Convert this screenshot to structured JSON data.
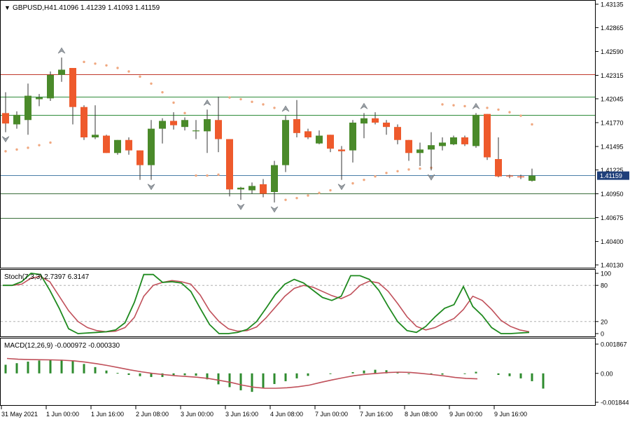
{
  "header": {
    "menu_glyph": "▼",
    "symbol_tf": "GBPUSD,H4",
    "ohlc": "1.41096 1.41239 1.41093 1.41159"
  },
  "colors": {
    "bull": "#4a8a2a",
    "bear": "#ee5a2c",
    "wick": "#333333",
    "sar": "#f0a880",
    "fractal": "#9aa0a6",
    "level_red": "#c0392b",
    "level_green": "#2e8b3a",
    "level_blue": "#4a7fa8",
    "level_dark": "#3a6e3a",
    "stoch_main": "#1f8a1f",
    "stoch_signal": "#c0505a",
    "macd_hist": "#2e8b2e",
    "macd_signal": "#c0505a",
    "price_badge": "#1f3f7a"
  },
  "chart_data": [
    {
      "type": "candlestick",
      "title": "GBPUSD,H4",
      "ylim": [
        1.4013,
        1.43135
      ],
      "y_ticks": [
        "1.43135",
        "1.42865",
        "1.42590",
        "1.42315",
        "1.42045",
        "1.41770",
        "1.41495",
        "1.41225",
        "1.40950",
        "1.40675",
        "1.40400",
        "1.40130"
      ],
      "current_price": "1.41159",
      "candles": [
        {
          "o": 1.4188,
          "h": 1.4212,
          "l": 1.4166,
          "c": 1.4176
        },
        {
          "o": 1.4175,
          "h": 1.419,
          "l": 1.417,
          "c": 1.4186
        },
        {
          "o": 1.418,
          "h": 1.4222,
          "l": 1.4163,
          "c": 1.4208
        },
        {
          "o": 1.4204,
          "h": 1.421,
          "l": 1.4196,
          "c": 1.4206
        },
        {
          "o": 1.4205,
          "h": 1.4236,
          "l": 1.4202,
          "c": 1.4232
        },
        {
          "o": 1.4232,
          "h": 1.4252,
          "l": 1.4224,
          "c": 1.4238
        },
        {
          "o": 1.424,
          "h": 1.424,
          "l": 1.4175,
          "c": 1.4195
        },
        {
          "o": 1.4195,
          "h": 1.4197,
          "l": 1.4157,
          "c": 1.416
        },
        {
          "o": 1.416,
          "h": 1.4197,
          "l": 1.4158,
          "c": 1.4163
        },
        {
          "o": 1.4162,
          "h": 1.4163,
          "l": 1.4142,
          "c": 1.4142
        },
        {
          "o": 1.4142,
          "h": 1.4157,
          "l": 1.414,
          "c": 1.4157
        },
        {
          "o": 1.4157,
          "h": 1.416,
          "l": 1.414,
          "c": 1.4145
        },
        {
          "o": 1.4145,
          "h": 1.4145,
          "l": 1.4111,
          "c": 1.4128
        },
        {
          "o": 1.4128,
          "h": 1.418,
          "l": 1.4111,
          "c": 1.417
        },
        {
          "o": 1.417,
          "h": 1.4182,
          "l": 1.4153,
          "c": 1.4179
        },
        {
          "o": 1.4179,
          "h": 1.4189,
          "l": 1.4169,
          "c": 1.4174
        },
        {
          "o": 1.4172,
          "h": 1.4183,
          "l": 1.4168,
          "c": 1.418
        },
        {
          "o": 1.4168,
          "h": 1.418,
          "l": 1.4158,
          "c": 1.4168
        },
        {
          "o": 1.4167,
          "h": 1.4192,
          "l": 1.4142,
          "c": 1.4181
        },
        {
          "o": 1.418,
          "h": 1.4207,
          "l": 1.4143,
          "c": 1.4158
        },
        {
          "o": 1.4158,
          "h": 1.4158,
          "l": 1.4092,
          "c": 1.41
        },
        {
          "o": 1.41,
          "h": 1.4103,
          "l": 1.4088,
          "c": 1.4102
        },
        {
          "o": 1.4099,
          "h": 1.4108,
          "l": 1.4095,
          "c": 1.4104
        },
        {
          "o": 1.4106,
          "h": 1.4112,
          "l": 1.4091,
          "c": 1.4095
        },
        {
          "o": 1.4097,
          "h": 1.4133,
          "l": 1.4085,
          "c": 1.4128
        },
        {
          "o": 1.4128,
          "h": 1.4185,
          "l": 1.412,
          "c": 1.418
        },
        {
          "o": 1.4181,
          "h": 1.4203,
          "l": 1.416,
          "c": 1.4165
        },
        {
          "o": 1.4167,
          "h": 1.417,
          "l": 1.4158,
          "c": 1.416
        },
        {
          "o": 1.4153,
          "h": 1.4168,
          "l": 1.4152,
          "c": 1.4162
        },
        {
          "o": 1.4163,
          "h": 1.4163,
          "l": 1.4143,
          "c": 1.4147
        },
        {
          "o": 1.4146,
          "h": 1.415,
          "l": 1.4111,
          "c": 1.4144
        },
        {
          "o": 1.4145,
          "h": 1.418,
          "l": 1.4131,
          "c": 1.4177
        },
        {
          "o": 1.4176,
          "h": 1.4188,
          "l": 1.4159,
          "c": 1.4182
        },
        {
          "o": 1.4182,
          "h": 1.4189,
          "l": 1.4175,
          "c": 1.4177
        },
        {
          "o": 1.4177,
          "h": 1.418,
          "l": 1.4163,
          "c": 1.4172
        },
        {
          "o": 1.4172,
          "h": 1.4175,
          "l": 1.4152,
          "c": 1.4157
        },
        {
          "o": 1.4157,
          "h": 1.4157,
          "l": 1.4133,
          "c": 1.4142
        },
        {
          "o": 1.4142,
          "h": 1.4154,
          "l": 1.4127,
          "c": 1.4146
        },
        {
          "o": 1.4146,
          "h": 1.4166,
          "l": 1.4122,
          "c": 1.4151
        },
        {
          "o": 1.415,
          "h": 1.416,
          "l": 1.4145,
          "c": 1.4154
        },
        {
          "o": 1.4152,
          "h": 1.4162,
          "l": 1.4151,
          "c": 1.416
        },
        {
          "o": 1.416,
          "h": 1.4162,
          "l": 1.415,
          "c": 1.4152
        },
        {
          "o": 1.415,
          "h": 1.4188,
          "l": 1.4148,
          "c": 1.4186
        },
        {
          "o": 1.4187,
          "h": 1.4187,
          "l": 1.4134,
          "c": 1.4137
        },
        {
          "o": 1.4135,
          "h": 1.416,
          "l": 1.4114,
          "c": 1.4115
        },
        {
          "o": 1.4116,
          "h": 1.4117,
          "l": 1.4113,
          "c": 1.4115
        },
        {
          "o": 1.4115,
          "h": 1.4117,
          "l": 1.4112,
          "c": 1.4114
        },
        {
          "o": 1.411,
          "h": 1.4124,
          "l": 1.4109,
          "c": 1.4116
        }
      ],
      "parabolic_sar": [
        {
          "i": 0,
          "v": 1.4144
        },
        {
          "i": 1,
          "v": 1.4146
        },
        {
          "i": 2,
          "v": 1.4148
        },
        {
          "i": 3,
          "v": 1.4151
        },
        {
          "i": 4,
          "v": 1.4154
        },
        {
          "i": 7,
          "v": 1.4247
        },
        {
          "i": 8,
          "v": 1.4245
        },
        {
          "i": 9,
          "v": 1.4243
        },
        {
          "i": 10,
          "v": 1.424
        },
        {
          "i": 11,
          "v": 1.4236
        },
        {
          "i": 12,
          "v": 1.423
        },
        {
          "i": 13,
          "v": 1.4222
        },
        {
          "i": 14,
          "v": 1.4212
        },
        {
          "i": 15,
          "v": 1.42
        },
        {
          "i": 16,
          "v": 1.4188
        },
        {
          "i": 17,
          "v": 1.4116
        },
        {
          "i": 18,
          "v": 1.4116
        },
        {
          "i": 19,
          "v": 1.4117
        },
        {
          "i": 20,
          "v": 1.4206
        },
        {
          "i": 21,
          "v": 1.4204
        },
        {
          "i": 22,
          "v": 1.4201
        },
        {
          "i": 23,
          "v": 1.4198
        },
        {
          "i": 24,
          "v": 1.4194
        },
        {
          "i": 25,
          "v": 1.4088
        },
        {
          "i": 26,
          "v": 1.409
        },
        {
          "i": 27,
          "v": 1.4093
        },
        {
          "i": 28,
          "v": 1.4096
        },
        {
          "i": 29,
          "v": 1.4099
        },
        {
          "i": 30,
          "v": 1.4103
        },
        {
          "i": 31,
          "v": 1.4107
        },
        {
          "i": 32,
          "v": 1.4111
        },
        {
          "i": 33,
          "v": 1.4115
        },
        {
          "i": 34,
          "v": 1.4119
        },
        {
          "i": 35,
          "v": 1.4121
        },
        {
          "i": 36,
          "v": 1.4123
        },
        {
          "i": 37,
          "v": 1.4124
        },
        {
          "i": 38,
          "v": 1.4125
        },
        {
          "i": 39,
          "v": 1.4198
        },
        {
          "i": 40,
          "v": 1.4197
        },
        {
          "i": 41,
          "v": 1.4196
        },
        {
          "i": 42,
          "v": 1.4196
        },
        {
          "i": 43,
          "v": 1.4194
        },
        {
          "i": 44,
          "v": 1.4192
        },
        {
          "i": 45,
          "v": 1.4189
        },
        {
          "i": 46,
          "v": 1.4185
        },
        {
          "i": 47,
          "v": 1.4175
        }
      ],
      "fractals_up": [
        5,
        18,
        25,
        32,
        42
      ],
      "fractals_down": [
        0,
        13,
        21,
        24,
        30,
        38
      ],
      "levels": [
        {
          "price": 1.4233,
          "color": "level_red"
        },
        {
          "price": 1.4207,
          "color": "level_green"
        },
        {
          "price": 1.4186,
          "color": "level_green"
        },
        {
          "price": 1.4116,
          "color": "level_blue"
        },
        {
          "price": 1.4095,
          "color": "level_dark"
        },
        {
          "price": 1.4067,
          "color": "level_dark"
        }
      ]
    },
    {
      "type": "line",
      "title": "Stoch(7,3,3) 2.7397 6.3147",
      "ylim": [
        0,
        100
      ],
      "y_ticks": [
        "100",
        "80",
        "20",
        "0"
      ],
      "levels": [
        80,
        20
      ],
      "series": [
        {
          "name": "main",
          "values": [
            80,
            80,
            86,
            100,
            98,
            72,
            42,
            8,
            0,
            1,
            2,
            3,
            6,
            18,
            52,
            98,
            98,
            85,
            86,
            84,
            70,
            42,
            15,
            0,
            0,
            2,
            7,
            20,
            42,
            65,
            82,
            90,
            84,
            72,
            60,
            55,
            62,
            96,
            96,
            90,
            72,
            45,
            20,
            5,
            2,
            12,
            28,
            42,
            48,
            78,
            45,
            30,
            10,
            0,
            0,
            1,
            2
          ]
        },
        {
          "name": "signal",
          "values": [
            80,
            80,
            82,
            92,
            95,
            86,
            62,
            38,
            20,
            10,
            5,
            3,
            4,
            10,
            27,
            62,
            80,
            85,
            88,
            86,
            82,
            64,
            38,
            20,
            8,
            4,
            5,
            11,
            26,
            44,
            62,
            75,
            80,
            77,
            70,
            63,
            58,
            65,
            80,
            87,
            84,
            70,
            50,
            28,
            12,
            6,
            10,
            18,
            25,
            40,
            62,
            55,
            40,
            22,
            12,
            6,
            3
          ]
        }
      ]
    },
    {
      "type": "bar",
      "title": "MACD(12,26,9) -0.000972 -0.000330",
      "ylim": [
        -0.001844,
        0.001867
      ],
      "y_ticks": [
        "0.001867",
        "0.00",
        "-0.001844"
      ],
      "histogram": [
        0.00055,
        0.00065,
        0.00075,
        0.00082,
        0.00085,
        0.00087,
        0.00078,
        0.0006,
        0.0004,
        0.00018,
        3e-05,
        -0.0001,
        -0.00018,
        -0.00023,
        -0.00023,
        -0.00015,
        -0.00012,
        -0.00015,
        -0.00038,
        -0.0007,
        -0.00088,
        -0.00108,
        -0.00118,
        -0.00095,
        -0.00068,
        -0.0005,
        -0.00032,
        -0.00016,
        -3e-05,
        8e-05,
        0.00018,
        0.00023,
        0.0002,
        8e-05,
        -3e-05,
        -8e-05,
        -8e-05,
        -3e-05,
        0.0001,
        -0.0001,
        -0.00018,
        -0.00032,
        -0.0005,
        -0.00097
      ],
      "histogram_x": [
        0,
        1,
        2,
        3,
        4,
        5,
        6,
        7,
        8,
        9,
        10,
        11,
        12,
        13,
        14,
        15,
        16,
        17,
        18,
        19,
        20,
        21,
        22,
        23,
        24,
        25,
        26,
        27,
        29,
        31,
        32,
        33,
        34,
        35,
        36,
        38,
        39,
        41,
        42,
        44,
        45,
        46,
        47,
        48
      ],
      "signal": [
        0.00095,
        0.0009,
        0.00088,
        0.00087,
        0.00086,
        0.00084,
        0.0008,
        0.00072,
        0.00062,
        0.0005,
        0.00036,
        0.00022,
        0.0001,
        0.0,
        -8e-05,
        -0.00015,
        -0.0002,
        -0.00025,
        -0.00033,
        -0.00045,
        -0.00058,
        -0.00075,
        -0.00088,
        -0.00095,
        -0.00095,
        -0.00092,
        -0.00085,
        -0.00075,
        -0.00058,
        -0.00042,
        -0.00028,
        -0.00015,
        -6e-05,
        0.0,
        5e-05,
        8e-05,
        6e-05,
        0.0,
        -8e-05,
        -0.00016,
        -0.00026,
        -0.00032,
        -0.00035
      ]
    }
  ],
  "x_axis": {
    "labels": [
      "31 May 2021",
      "1 Jun 00:00",
      "1 Jun 16:00",
      "2 Jun 08:00",
      "3 Jun 00:00",
      "3 Jun 16:00",
      "4 Jun 08:00",
      "7 Jun 00:00",
      "7 Jun 16:00",
      "8 Jun 08:00",
      "9 Jun 00:00",
      "9 Jun 16:00"
    ],
    "label_candle_index": [
      0,
      4,
      8,
      12,
      16,
      20,
      24,
      28,
      32,
      36,
      40,
      44
    ]
  }
}
